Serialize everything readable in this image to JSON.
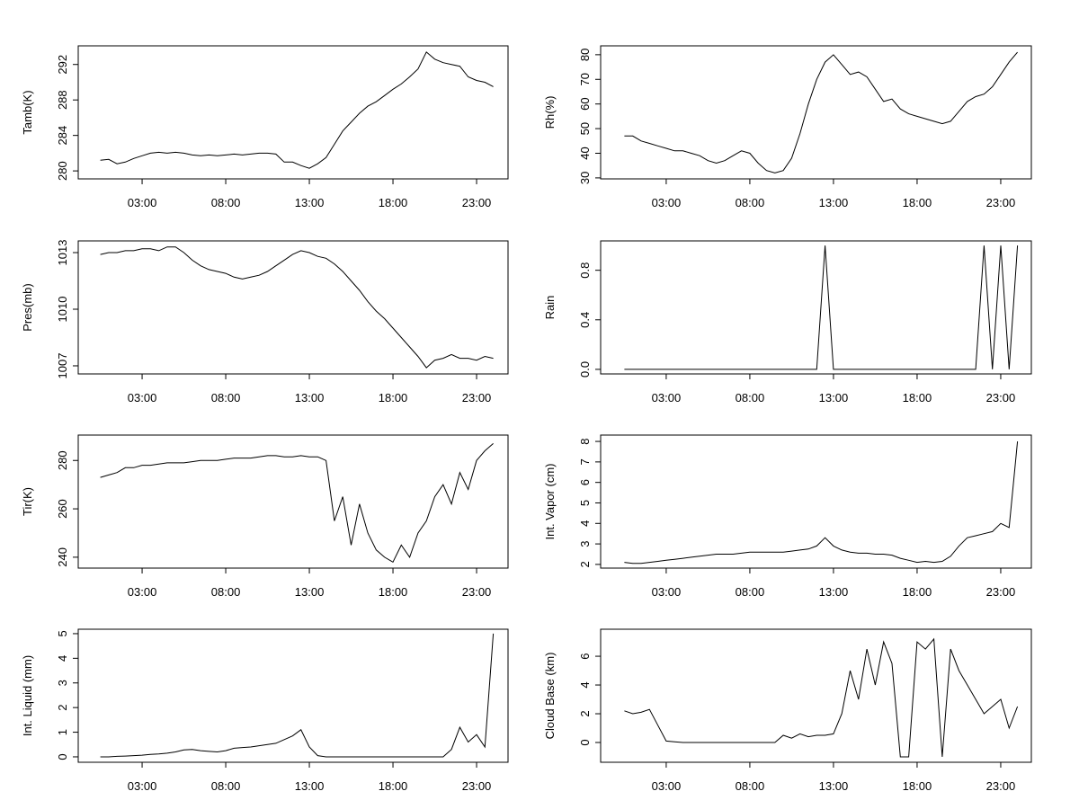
{
  "chart_data": [
    {
      "type": "line",
      "ylabel": "Tamb(K)",
      "color": "#000000",
      "x": [
        0.5,
        1,
        1.5,
        2,
        2.5,
        3,
        3.5,
        4,
        4.5,
        5,
        5.5,
        6,
        6.5,
        7,
        7.5,
        8,
        8.5,
        9,
        9.5,
        10,
        10.5,
        11,
        11.5,
        12,
        12.5,
        13,
        13.5,
        14,
        14.5,
        15,
        15.5,
        16,
        16.5,
        17,
        17.5,
        18,
        18.5,
        19,
        19.5,
        20,
        20.5,
        21,
        21.5,
        22,
        22.5,
        23,
        23.5,
        24
      ],
      "values": [
        281.2,
        281.3,
        280.8,
        281.0,
        281.4,
        281.7,
        282.0,
        282.1,
        282.0,
        282.1,
        282.0,
        281.8,
        281.7,
        281.8,
        281.7,
        281.8,
        281.9,
        281.8,
        281.9,
        282.0,
        282.0,
        281.9,
        281.0,
        281.0,
        280.6,
        280.3,
        280.8,
        281.5,
        283.0,
        284.5,
        285.5,
        286.5,
        287.3,
        287.8,
        288.5,
        289.2,
        289.8,
        290.6,
        291.5,
        293.4,
        292.6,
        292.2,
        292.0,
        291.8,
        290.6,
        290.2,
        290.0,
        289.5
      ],
      "xlim": [
        -0.82,
        24.88
      ],
      "ylim": [
        279.1,
        294.1
      ],
      "xticks": [
        {
          "value": 3,
          "label": "03:00"
        },
        {
          "value": 8,
          "label": "08:00"
        },
        {
          "value": 13,
          "label": "13:00"
        },
        {
          "value": 18,
          "label": "18:00"
        },
        {
          "value": 23,
          "label": "23:00"
        }
      ],
      "yticks": [
        280,
        284,
        288,
        292
      ]
    },
    {
      "type": "line",
      "ylabel": "Rh(%)",
      "color": "#000000",
      "x": [
        0.5,
        1,
        1.5,
        2,
        2.5,
        3,
        3.5,
        4,
        4.5,
        5,
        5.5,
        6,
        6.5,
        7,
        7.5,
        8,
        8.5,
        9,
        9.5,
        10,
        10.5,
        11,
        11.5,
        12,
        12.5,
        13,
        13.5,
        14,
        14.5,
        15,
        15.5,
        16,
        16.5,
        17,
        17.5,
        18,
        18.5,
        19,
        19.5,
        20,
        20.5,
        21,
        21.5,
        22,
        22.5,
        23,
        23.5,
        24
      ],
      "values": [
        47,
        47,
        45,
        44,
        43,
        42,
        41,
        41,
        40,
        39,
        37,
        36,
        37,
        39,
        41,
        40,
        36,
        33,
        32,
        33,
        38,
        48,
        60,
        70,
        77,
        80,
        76,
        72,
        73,
        71,
        66,
        61,
        62,
        58,
        56,
        55,
        54,
        53,
        52,
        53,
        57,
        61,
        63,
        64,
        67,
        72,
        77,
        81
      ],
      "xlim": [
        -0.92,
        24.83
      ],
      "ylim": [
        29.6,
        83.6
      ],
      "xticks": [
        {
          "value": 3,
          "label": "03:00"
        },
        {
          "value": 8,
          "label": "08:00"
        },
        {
          "value": 13,
          "label": "13:00"
        },
        {
          "value": 18,
          "label": "18:00"
        },
        {
          "value": 23,
          "label": "23:00"
        }
      ],
      "yticks": [
        30,
        40,
        50,
        60,
        70,
        80
      ]
    },
    {
      "type": "line",
      "ylabel": "Pres(mb)",
      "color": "#000000",
      "x": [
        0.5,
        1,
        1.5,
        2,
        2.5,
        3,
        3.5,
        4,
        4.5,
        5,
        5.5,
        6,
        6.5,
        7,
        7.5,
        8,
        8.5,
        9,
        9.5,
        10,
        10.5,
        11,
        11.5,
        12,
        12.5,
        13,
        13.5,
        14,
        14.5,
        15,
        15.5,
        16,
        16.5,
        17,
        17.5,
        18,
        18.5,
        19,
        19.5,
        20,
        20.5,
        21,
        21.5,
        22,
        22.5,
        23,
        23.5,
        24
      ],
      "values": [
        1012.9,
        1013.0,
        1013.0,
        1013.1,
        1013.1,
        1013.2,
        1013.2,
        1013.1,
        1013.3,
        1013.3,
        1013.0,
        1012.6,
        1012.3,
        1012.1,
        1012.0,
        1011.9,
        1011.7,
        1011.6,
        1011.7,
        1011.8,
        1012.0,
        1012.3,
        1012.6,
        1012.9,
        1013.1,
        1013.0,
        1012.8,
        1012.7,
        1012.4,
        1012.0,
        1011.5,
        1011.0,
        1010.4,
        1009.9,
        1009.5,
        1009.0,
        1008.5,
        1008.0,
        1007.5,
        1006.9,
        1007.3,
        1007.4,
        1007.6,
        1007.4,
        1007.4,
        1007.3,
        1007.5,
        1007.4
      ],
      "xlim": [
        -0.82,
        24.88
      ],
      "ylim": [
        1006.57,
        1013.62
      ],
      "xticks": [
        {
          "value": 3,
          "label": "03:00"
        },
        {
          "value": 8,
          "label": "08:00"
        },
        {
          "value": 13,
          "label": "13:00"
        },
        {
          "value": 18,
          "label": "18:00"
        },
        {
          "value": 23,
          "label": "23:00"
        }
      ],
      "yticks": [
        1007,
        1010,
        1013
      ]
    },
    {
      "type": "line",
      "ylabel": "Rain",
      "color": "#000000",
      "x": [
        0.5,
        1,
        1.5,
        2,
        2.5,
        3,
        3.5,
        4,
        4.5,
        5,
        5.5,
        6,
        6.5,
        7,
        7.5,
        8,
        8.5,
        9,
        9.5,
        10,
        10.5,
        11,
        11.5,
        12,
        12.5,
        13,
        13.5,
        14,
        14.5,
        15,
        15.5,
        16,
        16.5,
        17,
        17.5,
        18,
        18.5,
        19,
        19.5,
        20,
        20.5,
        21,
        21.5,
        22,
        22.5,
        23,
        23.5,
        24
      ],
      "values": [
        0,
        0,
        0,
        0,
        0,
        0,
        0,
        0,
        0,
        0,
        0,
        0,
        0,
        0,
        0,
        0,
        0,
        0,
        0,
        0,
        0,
        0,
        0,
        0,
        1,
        0,
        0,
        0,
        0,
        0,
        0,
        0,
        0,
        0,
        0,
        0,
        0,
        0,
        0,
        0,
        0,
        0,
        0,
        1,
        0,
        1,
        0,
        1
      ],
      "xlim": [
        -0.92,
        24.83
      ],
      "ylim": [
        -0.037,
        1.037
      ],
      "xticks": [
        {
          "value": 3,
          "label": "03:00"
        },
        {
          "value": 8,
          "label": "08:00"
        },
        {
          "value": 13,
          "label": "13:00"
        },
        {
          "value": 18,
          "label": "18:00"
        },
        {
          "value": 23,
          "label": "23:00"
        }
      ],
      "yticks": [
        {
          "value": 0,
          "label": "0.0"
        },
        0.4,
        0.8
      ]
    },
    {
      "type": "line",
      "ylabel": "Tir(K)",
      "color": "#000000",
      "x": [
        0.5,
        1,
        1.5,
        2,
        2.5,
        3,
        3.5,
        4,
        4.5,
        5,
        5.5,
        6,
        6.5,
        7,
        7.5,
        8,
        8.5,
        9,
        9.5,
        10,
        10.5,
        11,
        11.5,
        12,
        12.5,
        13,
        13.5,
        14,
        14.5,
        15,
        15.5,
        16,
        16.5,
        17,
        17.5,
        18,
        18.5,
        19,
        19.5,
        20,
        20.5,
        21,
        21.5,
        22,
        22.5,
        23,
        23.5,
        24
      ],
      "values": [
        273,
        274,
        275,
        277,
        277,
        278,
        278,
        278.5,
        279,
        279,
        279,
        279.5,
        280,
        280,
        280,
        280.5,
        281,
        281,
        281,
        281.5,
        282,
        282,
        281.5,
        281.5,
        282,
        281.5,
        281.5,
        280,
        255,
        265,
        245,
        262,
        250,
        243,
        240,
        238,
        245,
        240,
        250,
        255,
        265,
        270,
        262,
        275,
        268,
        280,
        284,
        287
      ],
      "xlim": [
        -0.82,
        24.88
      ],
      "ylim": [
        235.5,
        290.5
      ],
      "xticks": [
        {
          "value": 3,
          "label": "03:00"
        },
        {
          "value": 8,
          "label": "08:00"
        },
        {
          "value": 13,
          "label": "13:00"
        },
        {
          "value": 18,
          "label": "18:00"
        },
        {
          "value": 23,
          "label": "23:00"
        }
      ],
      "yticks": [
        240,
        260,
        280
      ]
    },
    {
      "type": "line",
      "ylabel": "Int. Vapor (cm)",
      "color": "#000000",
      "x": [
        0.5,
        1,
        1.5,
        2,
        2.5,
        3,
        3.5,
        4,
        4.5,
        5,
        5.5,
        6,
        6.5,
        7,
        7.5,
        8,
        8.5,
        9,
        9.5,
        10,
        10.5,
        11,
        11.5,
        12,
        12.5,
        13,
        13.5,
        14,
        14.5,
        15,
        15.5,
        16,
        16.5,
        17,
        17.5,
        18,
        18.5,
        19,
        19.5,
        20,
        20.5,
        21,
        21.5,
        22,
        22.5,
        23,
        23.5,
        24
      ],
      "values": [
        2.1,
        2.05,
        2.05,
        2.1,
        2.15,
        2.2,
        2.25,
        2.3,
        2.35,
        2.4,
        2.45,
        2.5,
        2.5,
        2.5,
        2.55,
        2.6,
        2.6,
        2.6,
        2.6,
        2.6,
        2.65,
        2.7,
        2.75,
        2.9,
        3.3,
        2.9,
        2.7,
        2.6,
        2.55,
        2.55,
        2.5,
        2.5,
        2.45,
        2.3,
        2.2,
        2.1,
        2.15,
        2.1,
        2.15,
        2.4,
        2.9,
        3.3,
        3.4,
        3.5,
        3.6,
        4.0,
        3.8,
        8.0
      ],
      "xlim": [
        -0.92,
        24.83
      ],
      "ylim": [
        1.82,
        8.31
      ],
      "xticks": [
        {
          "value": 3,
          "label": "03:00"
        },
        {
          "value": 8,
          "label": "08:00"
        },
        {
          "value": 13,
          "label": "13:00"
        },
        {
          "value": 18,
          "label": "18:00"
        },
        {
          "value": 23,
          "label": "23:00"
        }
      ],
      "yticks": [
        2,
        3,
        4,
        5,
        6,
        7,
        8
      ]
    },
    {
      "type": "line",
      "ylabel": "Int. Liquid (mm)",
      "color": "#000000",
      "x": [
        0.5,
        1,
        1.5,
        2,
        2.5,
        3,
        3.5,
        4,
        4.5,
        5,
        5.5,
        6,
        6.5,
        7,
        7.5,
        8,
        8.5,
        9,
        9.5,
        10,
        10.5,
        11,
        11.5,
        12,
        12.5,
        13,
        13.5,
        14,
        14.5,
        15,
        15.5,
        16,
        16.5,
        17,
        17.5,
        18,
        18.5,
        19,
        19.5,
        20,
        20.5,
        21,
        21.5,
        22,
        22.5,
        23,
        23.5,
        24
      ],
      "values": [
        0,
        0,
        0.02,
        0.03,
        0.05,
        0.07,
        0.1,
        0.12,
        0.15,
        0.2,
        0.28,
        0.3,
        0.25,
        0.22,
        0.2,
        0.25,
        0.35,
        0.38,
        0.4,
        0.45,
        0.5,
        0.55,
        0.7,
        0.85,
        1.1,
        0.4,
        0.05,
        0,
        0,
        0,
        0,
        0,
        0,
        0,
        0,
        0,
        0,
        0,
        0,
        0,
        0,
        0,
        0.3,
        1.2,
        0.6,
        0.9,
        0.4,
        5.0
      ],
      "xlim": [
        -0.82,
        24.88
      ],
      "ylim": [
        -0.22,
        5.18
      ],
      "xticks": [
        {
          "value": 3,
          "label": "03:00"
        },
        {
          "value": 8,
          "label": "08:00"
        },
        {
          "value": 13,
          "label": "13:00"
        },
        {
          "value": 18,
          "label": "18:00"
        },
        {
          "value": 23,
          "label": "23:00"
        }
      ],
      "yticks": [
        0,
        1,
        2,
        3,
        4,
        5
      ]
    },
    {
      "type": "line",
      "ylabel": "Cloud Base (km)",
      "color": "#000000",
      "x": [
        0.5,
        1,
        1.5,
        2,
        2.5,
        3,
        3.5,
        4,
        4.5,
        5,
        5.5,
        6,
        6.5,
        7,
        7.5,
        8,
        8.5,
        9,
        9.5,
        10,
        10.5,
        11,
        11.5,
        12,
        12.5,
        13,
        13.5,
        14,
        14.5,
        15,
        15.5,
        16,
        16.5,
        17,
        17.5,
        18,
        18.5,
        19,
        19.5,
        20,
        20.5,
        21,
        21.5,
        22,
        22.5,
        23,
        23.5,
        24
      ],
      "values": [
        2.2,
        2.0,
        2.1,
        2.3,
        1.2,
        0.1,
        0.05,
        0,
        0,
        0,
        0,
        0,
        0,
        0,
        0,
        0,
        0,
        0,
        0,
        0.5,
        0.3,
        0.6,
        0.4,
        0.5,
        0.5,
        0.6,
        2,
        5,
        3,
        6.5,
        4,
        7,
        5.5,
        -1,
        -1,
        7,
        6.5,
        7.2,
        -1,
        6.5,
        5,
        4,
        3,
        2,
        2.5,
        3,
        1,
        2.5
      ],
      "xlim": [
        -0.92,
        24.83
      ],
      "ylim": [
        -1.375,
        7.88
      ],
      "xticks": [
        {
          "value": 3,
          "label": "03:00"
        },
        {
          "value": 8,
          "label": "08:00"
        },
        {
          "value": 13,
          "label": "13:00"
        },
        {
          "value": 18,
          "label": "18:00"
        },
        {
          "value": 23,
          "label": "23:00"
        }
      ],
      "yticks": [
        0,
        2,
        4,
        6
      ]
    }
  ]
}
